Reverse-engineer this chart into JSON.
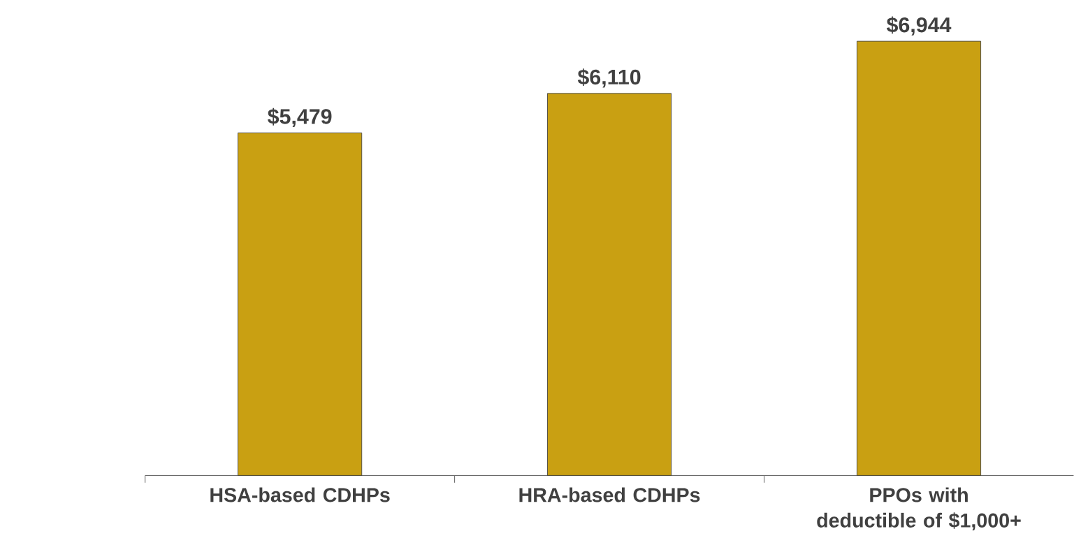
{
  "chart_data": {
    "type": "bar",
    "categories": [
      "HSA-based CDHPs",
      "HRA-based CDHPs",
      "PPOs with deductible of $1,000+"
    ],
    "values": [
      5479,
      6110,
      6944
    ],
    "value_labels": [
      "$5,479",
      "$6,110",
      "$6,944"
    ],
    "color": "#c9a012"
  }
}
